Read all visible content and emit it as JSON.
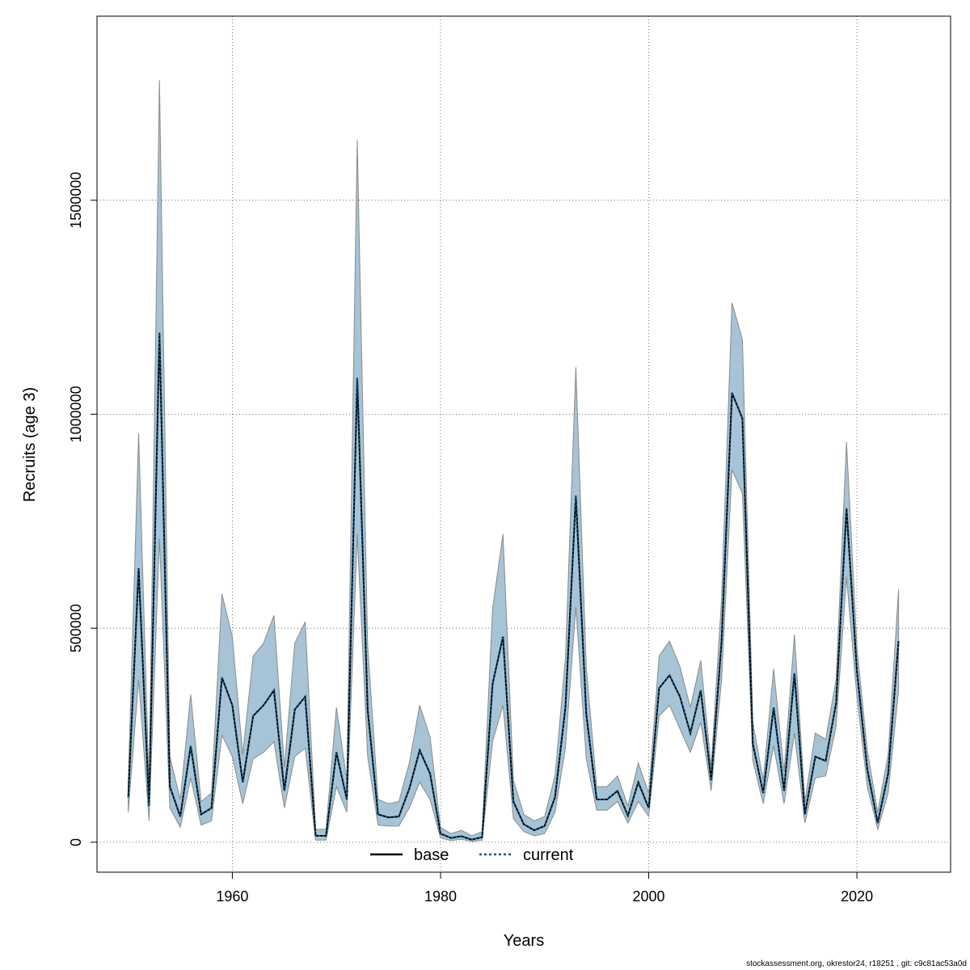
{
  "chart_data": {
    "type": "area",
    "xlabel": "Years",
    "ylabel": "Recruits (age 3)",
    "xlim": [
      1947,
      2029
    ],
    "ylim": [
      -70000,
      1930000
    ],
    "x_ticks": [
      1960,
      1980,
      2000,
      2020
    ],
    "y_ticks": [
      0,
      500000,
      1000000,
      1500000
    ],
    "grid": true,
    "legend_position": "bottom-center",
    "band_color": "#a6c4d5",
    "band_edge_color": "#8a8a8a",
    "years": [
      1950,
      1951,
      1952,
      1953,
      1954,
      1955,
      1956,
      1957,
      1958,
      1959,
      1960,
      1961,
      1962,
      1963,
      1964,
      1965,
      1966,
      1967,
      1968,
      1969,
      1970,
      1971,
      1972,
      1973,
      1974,
      1975,
      1976,
      1977,
      1978,
      1979,
      1980,
      1981,
      1982,
      1983,
      1984,
      1985,
      1986,
      1987,
      1988,
      1989,
      1990,
      1991,
      1992,
      1993,
      1994,
      1995,
      1996,
      1997,
      1998,
      1999,
      2000,
      2001,
      2002,
      2003,
      2004,
      2005,
      2006,
      2007,
      2008,
      2009,
      2010,
      2011,
      2012,
      2013,
      2014,
      2015,
      2016,
      2017,
      2018,
      2019,
      2020,
      2021,
      2022,
      2023,
      2024
    ],
    "upper": [
      140000,
      955000,
      130000,
      1780000,
      200000,
      100000,
      345000,
      95000,
      115000,
      580000,
      480000,
      205000,
      435000,
      465000,
      530000,
      175000,
      465000,
      515000,
      30000,
      30000,
      315000,
      145000,
      1640000,
      460000,
      100000,
      90000,
      95000,
      185000,
      320000,
      245000,
      35000,
      20000,
      28000,
      15000,
      25000,
      545000,
      720000,
      145000,
      65000,
      50000,
      60000,
      155000,
      430000,
      1110000,
      410000,
      130000,
      130000,
      155000,
      85000,
      185000,
      115000,
      435000,
      470000,
      410000,
      315000,
      425000,
      175000,
      570000,
      1260000,
      1175000,
      280000,
      145000,
      405000,
      165000,
      485000,
      95000,
      255000,
      240000,
      380000,
      935000,
      455000,
      215000,
      70000,
      205000,
      590000
    ],
    "lower": [
      70000,
      380000,
      50000,
      710000,
      80000,
      35000,
      150000,
      40000,
      50000,
      250000,
      200000,
      90000,
      195000,
      210000,
      235000,
      80000,
      200000,
      220000,
      5000,
      5000,
      130000,
      70000,
      720000,
      200000,
      40000,
      38000,
      38000,
      80000,
      140000,
      100000,
      10000,
      4000,
      7000,
      2000,
      5000,
      235000,
      320000,
      55000,
      25000,
      15000,
      20000,
      70000,
      220000,
      550000,
      195000,
      75000,
      75000,
      95000,
      45000,
      95000,
      60000,
      295000,
      320000,
      265000,
      210000,
      280000,
      120000,
      380000,
      870000,
      815000,
      190000,
      90000,
      225000,
      90000,
      255000,
      45000,
      150000,
      155000,
      270000,
      620000,
      340000,
      130000,
      30000,
      115000,
      355000
    ],
    "series": [
      {
        "name": "base",
        "color": "#000000",
        "dash": "solid",
        "values": [
          105000,
          640000,
          85000,
          1190000,
          130000,
          60000,
          225000,
          65000,
          80000,
          385000,
          320000,
          140000,
          295000,
          320000,
          355000,
          120000,
          310000,
          340000,
          15000,
          15000,
          210000,
          100000,
          1085000,
          310000,
          65000,
          58000,
          60000,
          125000,
          215000,
          160000,
          20000,
          10000,
          14000,
          6000,
          12000,
          370000,
          480000,
          95000,
          42000,
          28000,
          38000,
          105000,
          315000,
          810000,
          300000,
          100000,
          100000,
          120000,
          62000,
          140000,
          80000,
          360000,
          390000,
          340000,
          255000,
          355000,
          145000,
          470000,
          1050000,
          990000,
          230000,
          115000,
          315000,
          120000,
          395000,
          65000,
          200000,
          190000,
          325000,
          780000,
          400000,
          170000,
          45000,
          160000,
          470000
        ]
      },
      {
        "name": "current",
        "color": "#0b5a8a",
        "dash": "dotted",
        "values": [
          105000,
          640000,
          85000,
          1190000,
          130000,
          60000,
          225000,
          65000,
          80000,
          385000,
          320000,
          140000,
          295000,
          320000,
          355000,
          120000,
          310000,
          340000,
          15000,
          15000,
          210000,
          100000,
          1085000,
          310000,
          65000,
          58000,
          60000,
          125000,
          215000,
          160000,
          20000,
          10000,
          14000,
          6000,
          12000,
          370000,
          480000,
          95000,
          42000,
          28000,
          38000,
          105000,
          315000,
          810000,
          300000,
          100000,
          100000,
          120000,
          62000,
          140000,
          80000,
          360000,
          390000,
          340000,
          255000,
          355000,
          145000,
          470000,
          1050000,
          990000,
          230000,
          115000,
          315000,
          120000,
          395000,
          65000,
          200000,
          190000,
          325000,
          780000,
          400000,
          170000,
          45000,
          160000,
          470000
        ]
      }
    ]
  },
  "footer": "stockassessment.org, okrestor24, r18251 , git: c9c81ac53a0d"
}
